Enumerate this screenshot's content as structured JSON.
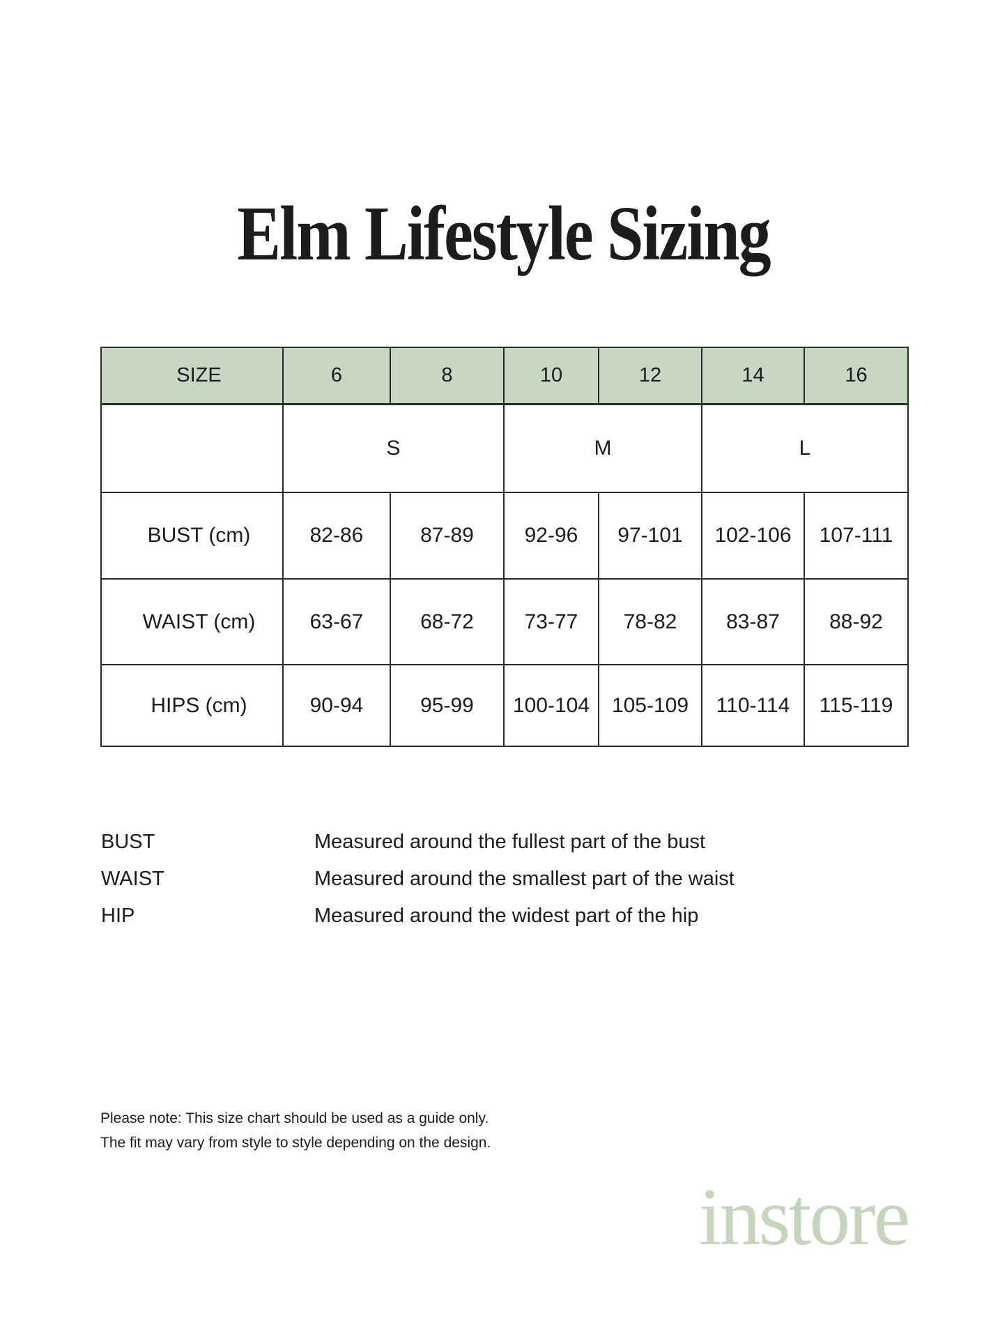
{
  "title": "Elm Lifestyle Sizing",
  "table": {
    "header": {
      "label": "SIZE",
      "sizes": [
        "6",
        "8",
        "10",
        "12",
        "14",
        "16"
      ]
    },
    "groups": [
      "S",
      "M",
      "L"
    ],
    "rows": [
      {
        "label": "BUST (cm)",
        "values": [
          "82-86",
          "87-89",
          "92-96",
          "97-101",
          "102-106",
          "107-111"
        ]
      },
      {
        "label": "WAIST (cm)",
        "values": [
          "63-67",
          "68-72",
          "73-77",
          "78-82",
          "83-87",
          "88-92"
        ]
      },
      {
        "label": "HIPS (cm)",
        "values": [
          "90-94",
          "95-99",
          "100-104",
          "105-109",
          "110-114",
          "115-119"
        ]
      }
    ]
  },
  "guide": [
    {
      "label": "BUST",
      "description": "Measured around the fullest part of the bust"
    },
    {
      "label": "WAIST",
      "description": "Measured around the smallest part of the waist"
    },
    {
      "label": "HIP",
      "description": "Measured around the widest part of the hip"
    }
  ],
  "note": {
    "line1": "Please note: This size chart should be used as a guide only.",
    "line2": "The fit may vary from style to style depending on the design."
  },
  "brand": {
    "logo_text": "instore"
  },
  "colors": {
    "header_green": "#c8d6c4",
    "label_gray": "#f1f1f0",
    "table_border": "#2b2b2b",
    "text": "#1c1c1c",
    "logo_green": "#c5d4bd",
    "page_bg": "#ffffff"
  }
}
